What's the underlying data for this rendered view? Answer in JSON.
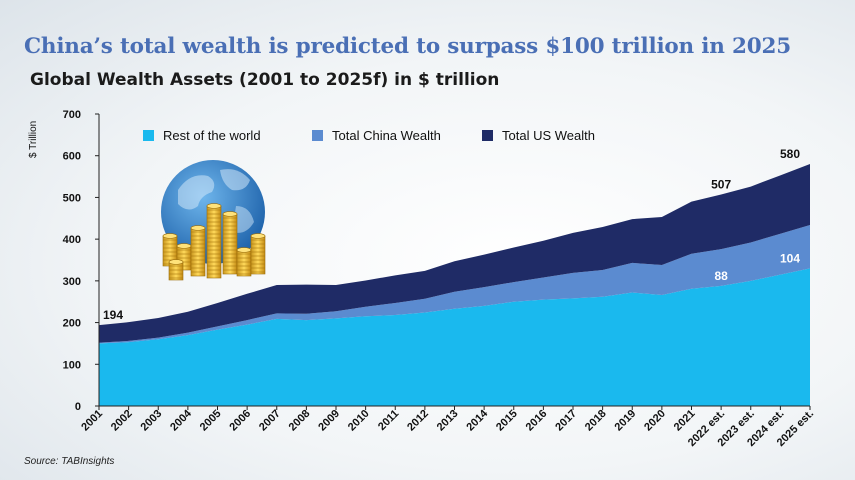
{
  "header": {
    "title": "China’s total wealth is predicted to surpass $100 trillion in 2025",
    "subtitle": "Global Wealth Assets (2001 to 2025f) in $ trillion"
  },
  "footer": {
    "source": "Source: TABInsights"
  },
  "chart_data": {
    "type": "area",
    "stacked": true,
    "ylabel": "$ Trillion",
    "ylim": [
      0,
      700
    ],
    "yticks": [
      0,
      100,
      200,
      300,
      400,
      500,
      600,
      700
    ],
    "grid": false,
    "legend_position": "top",
    "categories": [
      "2001",
      "2002",
      "2003",
      "2004",
      "2005",
      "2006",
      "2007",
      "2008",
      "2009",
      "2010",
      "2011",
      "2012",
      "2013",
      "2014",
      "2015",
      "2016",
      "2017",
      "2018",
      "2019",
      "2020",
      "2021",
      "2022 est.",
      "2023 est.",
      "2024 est.",
      "2025 est."
    ],
    "series": [
      {
        "name": "Rest of the world",
        "color": "#1ab9ee",
        "values": [
          150,
          153,
          160,
          170,
          183,
          195,
          209,
          206,
          210,
          215,
          218,
          224,
          233,
          240,
          250,
          255,
          258,
          262,
          272,
          266,
          281,
          288,
          300,
          315,
          330
        ]
      },
      {
        "name": "Total China Wealth",
        "color": "#5b8bd0",
        "values": [
          2,
          3,
          4,
          6,
          8,
          11,
          13,
          15,
          17,
          23,
          29,
          33,
          41,
          45,
          47,
          53,
          61,
          64,
          71,
          72,
          84,
          88,
          92,
          98,
          104
        ]
      },
      {
        "name": "Total US Wealth",
        "color": "#1f2b66",
        "values": [
          42,
          45,
          47,
          50,
          56,
          63,
          68,
          70,
          63,
          63,
          66,
          67,
          73,
          78,
          83,
          88,
          96,
          103,
          105,
          115,
          125,
          131,
          134,
          140,
          146
        ]
      }
    ],
    "annotations": [
      {
        "category": "2001",
        "text": "194",
        "style": "dark"
      },
      {
        "category": "2022 est.",
        "text": "507",
        "style": "dark"
      },
      {
        "category": "2025 est.",
        "text": "580",
        "style": "dark"
      },
      {
        "category": "2022 est.",
        "text": "88",
        "style": "light"
      },
      {
        "category": "2025 est.",
        "text": "104",
        "style": "light"
      }
    ],
    "decoration": {
      "image": "globe-with-gold-coins"
    }
  }
}
